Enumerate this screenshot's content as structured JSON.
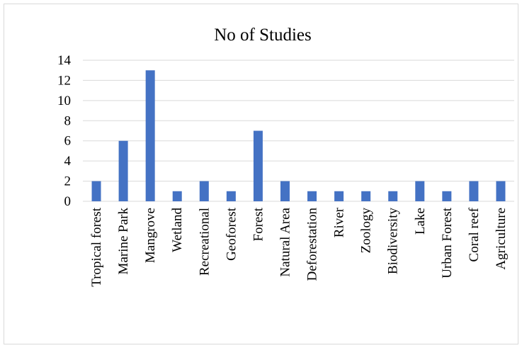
{
  "chart_data": {
    "type": "bar",
    "title": "No of Studies",
    "xlabel": "",
    "ylabel": "",
    "categories": [
      "Tropical forest",
      "Marine Park",
      "Mangrove",
      "Wetland",
      "Recreational",
      "Geoforest",
      "Forest",
      "Natural Area",
      "Deforestation",
      "River",
      "Zoology",
      "Biodiversity",
      "Lake",
      "Urban Forest",
      "Coral reef",
      "Agriculture"
    ],
    "values": [
      2,
      6,
      13,
      1,
      2,
      1,
      7,
      2,
      1,
      1,
      1,
      1,
      2,
      1,
      2,
      2
    ],
    "ylim": [
      0,
      14
    ],
    "yticks": [
      0,
      2,
      4,
      6,
      8,
      10,
      12,
      14
    ],
    "grid": true,
    "legend": "none",
    "bar_color": "#4472C4",
    "grid_color": "#d9d9d9"
  }
}
